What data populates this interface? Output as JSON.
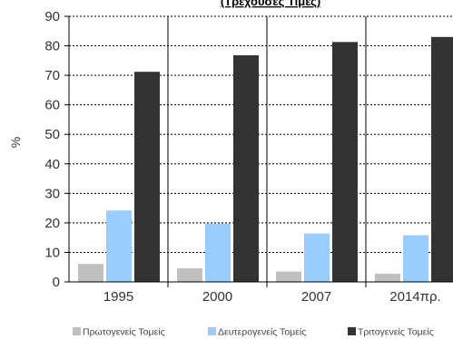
{
  "chart_data": {
    "type": "bar",
    "title": "(Τρέχουσες Τιμές)",
    "xlabel": "",
    "ylabel": "%",
    "ylim": [
      0,
      90
    ],
    "yticks": [
      0,
      10,
      20,
      30,
      40,
      50,
      60,
      70,
      80,
      90
    ],
    "categories": [
      "1995",
      "2000",
      "2007",
      "2014πρ."
    ],
    "grid": true,
    "legend_position": "bottom",
    "series": [
      {
        "name": "Πρωτογενείς  Τομείς",
        "color": "#c0c0c0",
        "values": [
          6.1,
          4.6,
          3.5,
          2.8
        ]
      },
      {
        "name": "Δευτερογενείς  Τομείς",
        "color": "#99ccff",
        "values": [
          24.2,
          19.8,
          16.4,
          15.8
        ]
      },
      {
        "name": "Τριτογενείς  Τομείς",
        "color": "#333333",
        "values": [
          71.2,
          76.8,
          81.3,
          83.0
        ]
      }
    ]
  }
}
